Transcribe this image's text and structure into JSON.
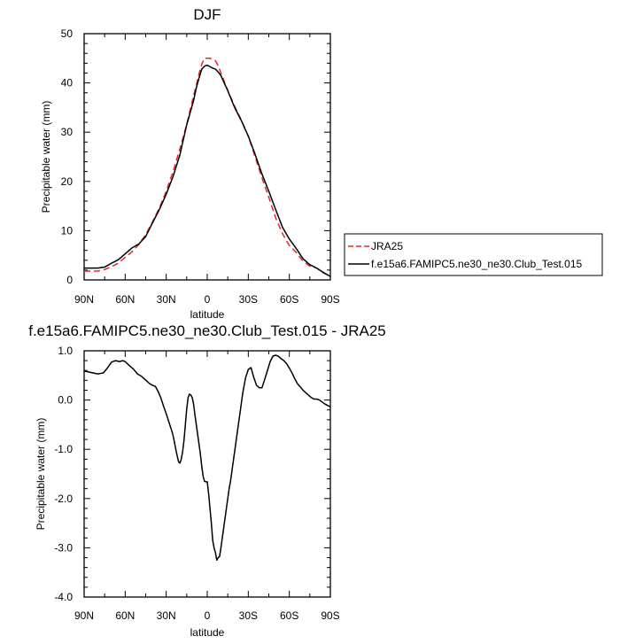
{
  "chart_data": [
    {
      "type": "line",
      "title": "DJF",
      "xlabel": "latitude",
      "ylabel": "Precipitable water (mm)",
      "xlim": [
        90,
        -90
      ],
      "ylim": [
        0,
        50
      ],
      "xticks": [
        90,
        60,
        30,
        0,
        -30,
        -60,
        -90
      ],
      "xtick_labels": [
        "90N",
        "60N",
        "30N",
        "0",
        "30S",
        "60S",
        "90S"
      ],
      "yticks": [
        0,
        10,
        20,
        30,
        40,
        50
      ],
      "ytick_labels": [
        "0",
        "10",
        "20",
        "30",
        "40",
        "50"
      ],
      "legend_position": "right",
      "grid": false,
      "series": [
        {
          "name": "JRA25",
          "color": "#e8262a",
          "dash": "dashed",
          "x": [
            90,
            80,
            75,
            70,
            65,
            60,
            55,
            50,
            45,
            40,
            35,
            30,
            25,
            20,
            15,
            10,
            8,
            6,
            4,
            2,
            0,
            -2,
            -4,
            -6,
            -8,
            -10,
            -15,
            -20,
            -25,
            -30,
            -35,
            -40,
            -45,
            -50,
            -55,
            -60,
            -65,
            -70,
            -75,
            -80,
            -85,
            -90
          ],
          "y": [
            1.8,
            1.8,
            2.1,
            2.7,
            3.4,
            4.6,
            5.7,
            7.2,
            9.2,
            11.8,
            14.6,
            18.0,
            22.0,
            26.6,
            31.6,
            37.4,
            39.5,
            41.9,
            43.8,
            45.0,
            45.0,
            45.0,
            44.8,
            44.5,
            43.5,
            42.0,
            38.5,
            35.3,
            32.4,
            29.2,
            25.0,
            20.7,
            16.8,
            12.6,
            9.4,
            7.0,
            5.6,
            3.8,
            2.8,
            2.4,
            1.4,
            0.8
          ]
        },
        {
          "name": "f.e15a6.FAMIPC5.ne30_ne30.Club_Test.015",
          "color": "#000000",
          "dash": "solid",
          "x": [
            90,
            80,
            75,
            70,
            65,
            60,
            55,
            50,
            45,
            40,
            35,
            30,
            25,
            20,
            15,
            10,
            8,
            6,
            4,
            2,
            0,
            -2,
            -4,
            -6,
            -8,
            -10,
            -15,
            -20,
            -25,
            -30,
            -35,
            -40,
            -45,
            -50,
            -55,
            -60,
            -65,
            -70,
            -75,
            -80,
            -85,
            -90
          ],
          "y": [
            2.4,
            2.4,
            2.6,
            3.4,
            4.1,
            5.3,
            6.5,
            7.3,
            8.8,
            11.6,
            14.3,
            17.4,
            21.0,
            25.4,
            31.5,
            36.4,
            39.0,
            41.0,
            42.8,
            43.4,
            43.6,
            43.3,
            43.0,
            42.8,
            42.2,
            41.5,
            38.4,
            35.0,
            32.3,
            29.2,
            25.5,
            21.5,
            18.0,
            14.3,
            10.7,
            8.3,
            6.4,
            4.3,
            3.1,
            2.4,
            1.5,
            0.7
          ]
        }
      ]
    },
    {
      "type": "line",
      "title": "f.e15a6.FAMIPC5.ne30_ne30.Club_Test.015 - JRA25",
      "xlabel": "latitude",
      "ylabel": "Precipitable water (mm)",
      "xlim": [
        90,
        -90
      ],
      "ylim": [
        -4.0,
        1.0
      ],
      "xticks": [
        90,
        60,
        30,
        0,
        -30,
        -60,
        -90
      ],
      "xtick_labels": [
        "90N",
        "60N",
        "30N",
        "0",
        "30S",
        "60S",
        "90S"
      ],
      "yticks": [
        1.0,
        0.0,
        -1.0,
        -2.0,
        -3.0,
        -4.0
      ],
      "ytick_labels": [
        "1.0",
        "0.0",
        "-1.0",
        "-2.0",
        "-3.0",
        "-4.0"
      ],
      "grid": false,
      "series": [
        {
          "color": "#000000",
          "dash": "solid",
          "x": [
            90,
            85,
            80,
            76,
            73,
            70,
            67,
            64,
            62,
            60,
            57,
            54,
            51,
            48,
            46,
            44,
            42,
            40,
            38,
            36,
            34,
            32,
            30,
            28,
            26,
            25,
            24,
            23,
            22,
            21,
            20,
            19,
            18,
            17,
            16,
            15,
            14,
            13,
            12,
            11,
            10,
            9,
            8,
            7,
            6,
            5,
            4,
            3,
            2,
            1,
            0,
            -1,
            -2,
            -3,
            -4,
            -5,
            -6,
            -7,
            -8,
            -9,
            -10,
            -11,
            -12,
            -13,
            -14,
            -15,
            -16,
            -17,
            -18,
            -19,
            -20,
            -21,
            -22,
            -23,
            -24,
            -25,
            -26,
            -28,
            -30,
            -32,
            -34,
            -36,
            -38,
            -40,
            -42,
            -44,
            -46,
            -48,
            -50,
            -52,
            -54,
            -56,
            -58,
            -60,
            -62,
            -64,
            -66,
            -68,
            -70,
            -72,
            -74,
            -76,
            -78,
            -80,
            -82,
            -84,
            -86,
            -88,
            -90
          ],
          "y": [
            0.59,
            0.56,
            0.53,
            0.55,
            0.65,
            0.77,
            0.8,
            0.78,
            0.8,
            0.78,
            0.7,
            0.63,
            0.53,
            0.48,
            0.43,
            0.38,
            0.33,
            0.3,
            0.28,
            0.18,
            0.05,
            -0.12,
            -0.28,
            -0.45,
            -0.62,
            -0.72,
            -0.85,
            -1.0,
            -1.13,
            -1.25,
            -1.28,
            -1.2,
            -1.05,
            -0.82,
            -0.5,
            -0.18,
            0.05,
            0.12,
            0.1,
            0.05,
            -0.08,
            -0.3,
            -0.5,
            -0.7,
            -0.9,
            -1.1,
            -1.35,
            -1.55,
            -1.65,
            -1.66,
            -1.66,
            -1.9,
            -2.2,
            -2.5,
            -2.85,
            -3.0,
            -3.1,
            -3.25,
            -3.2,
            -3.18,
            -3.0,
            -2.8,
            -2.6,
            -2.4,
            -2.2,
            -2.0,
            -1.8,
            -1.65,
            -1.45,
            -1.25,
            -1.05,
            -0.85,
            -0.65,
            -0.45,
            -0.25,
            -0.05,
            0.15,
            0.45,
            0.62,
            0.66,
            0.46,
            0.3,
            0.25,
            0.25,
            0.42,
            0.6,
            0.78,
            0.89,
            0.91,
            0.89,
            0.84,
            0.8,
            0.74,
            0.65,
            0.55,
            0.43,
            0.33,
            0.27,
            0.2,
            0.15,
            0.1,
            0.05,
            0.02,
            0.02,
            0.0,
            -0.04,
            -0.08,
            -0.11,
            -0.14
          ]
        }
      ]
    }
  ]
}
